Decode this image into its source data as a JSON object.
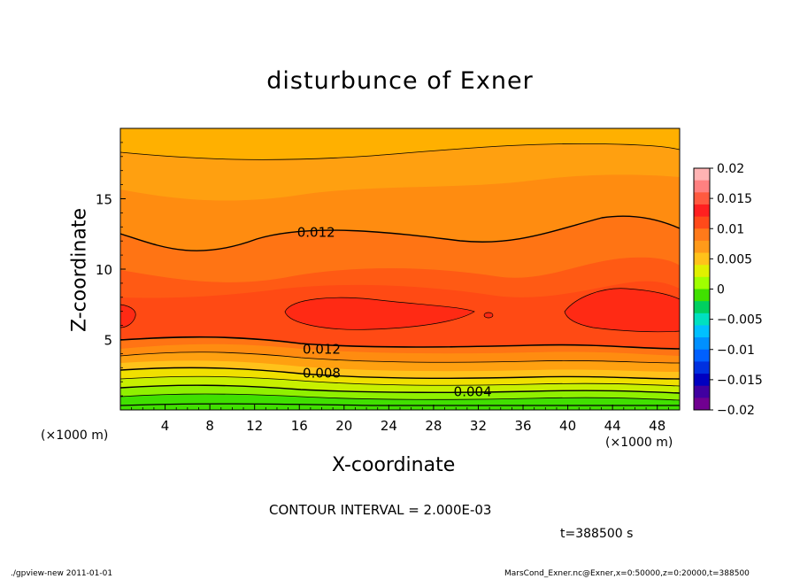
{
  "chart_data": {
    "type": "heatmap",
    "title": "disturbunce of Exner",
    "xlabel": "X-coordinate",
    "ylabel": "Z-coordinate",
    "x_unit": "(×1000 m)",
    "x_ticks": [
      "4",
      "8",
      "12",
      "16",
      "20",
      "24",
      "28",
      "32",
      "36",
      "40",
      "44",
      "48"
    ],
    "y_ticks": [
      "5",
      "10",
      "15"
    ],
    "xlim": [
      0,
      50
    ],
    "ylim": [
      0,
      20
    ],
    "contour_labels": [
      {
        "text": "0.012",
        "x": 17.5,
        "z": 12.6
      },
      {
        "text": "0.012",
        "x": 18,
        "z": 4.3
      },
      {
        "text": "0.008",
        "x": 18,
        "z": 2.6
      },
      {
        "text": "0.004",
        "x": 31.5,
        "z": 1.3
      }
    ],
    "colorbar": {
      "ticks": [
        "0.02",
        "0.015",
        "0.01",
        "0.005",
        "0",
        "−0.005",
        "−0.01",
        "−0.015",
        "−0.02"
      ],
      "colors": [
        "#ffb3b3",
        "#ff8080",
        "#ff5a40",
        "#ff2020",
        "#ff4a1a",
        "#ff7a1a",
        "#ff9a1a",
        "#ffc21a",
        "#e0f000",
        "#a0ff00",
        "#40e000",
        "#00d060",
        "#00e0c0",
        "#00c0ff",
        "#0090ff",
        "#0060ff",
        "#0030e0",
        "#0000c0",
        "#4000a0",
        "#700090"
      ]
    },
    "contour_interval_text": "CONTOUR INTERVAL = 2.000E-03",
    "time_text": "t=388500 s"
  },
  "footer": {
    "left": "./gpview-new   2011-01-01",
    "right": "MarsCond_Exner.nc@Exner,x=0:50000,z=0:20000,t=388500"
  }
}
